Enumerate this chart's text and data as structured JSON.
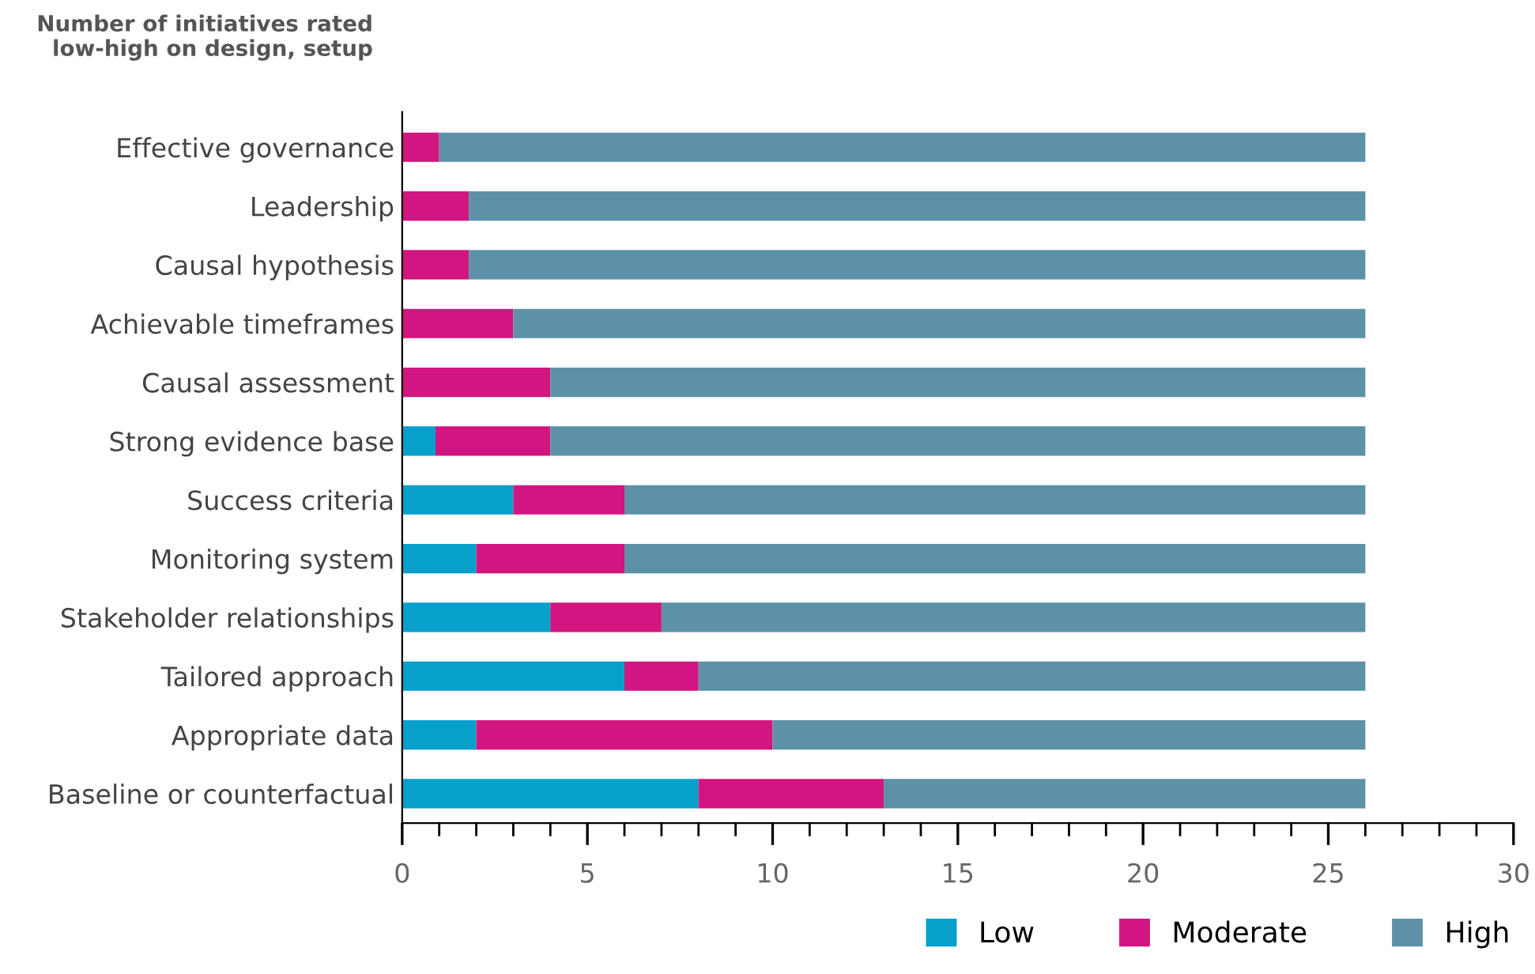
{
  "chart_data": {
    "type": "bar",
    "orientation": "horizontal",
    "stacked": true,
    "title": "Number of initiatives rated\nlow-high on design, setup",
    "categories": [
      "Effective governance",
      "Leadership",
      "Causal hypothesis",
      "Achievable timeframes",
      "Causal assessment",
      "Strong evidence base",
      "Success criteria",
      "Monitoring system",
      "Stakeholder relationships",
      "Tailored approach",
      "Appropriate data",
      "Baseline or counterfactual"
    ],
    "series": [
      {
        "name": "Low",
        "color": "#079fcb",
        "values": [
          0,
          0,
          0,
          0,
          0,
          0.9,
          3,
          2,
          4,
          6,
          2,
          8
        ]
      },
      {
        "name": "Moderate",
        "color": "#d11581",
        "values": [
          1,
          1.8,
          1.8,
          3,
          4,
          3.1,
          3,
          4,
          3,
          2,
          8,
          5
        ]
      },
      {
        "name": "High",
        "color": "#5d91a8",
        "values": [
          25,
          24.2,
          24.2,
          23,
          22,
          22,
          20,
          20,
          19,
          18,
          16,
          13
        ]
      }
    ],
    "xlim": [
      0,
      30
    ],
    "xticks": [
      0,
      {
        "value": 1,
        "label": null
      },
      {
        "value": 2,
        "label": null
      },
      {
        "value": 3,
        "label": null
      },
      {
        "value": 4,
        "label": null
      },
      5,
      {
        "value": 6,
        "label": null
      },
      {
        "value": 7,
        "label": null
      },
      {
        "value": 8,
        "label": null
      },
      {
        "value": 9,
        "label": null
      },
      10,
      {
        "value": 11,
        "label": null
      },
      {
        "value": 12,
        "label": null
      },
      {
        "value": 13,
        "label": null
      },
      {
        "value": 14,
        "label": null
      },
      15,
      {
        "value": 16,
        "label": null
      },
      {
        "value": 17,
        "label": null
      },
      {
        "value": 18,
        "label": null
      },
      {
        "value": 19,
        "label": null
      },
      20,
      {
        "value": 21,
        "label": null
      },
      {
        "value": 22,
        "label": null
      },
      {
        "value": 23,
        "label": null
      },
      {
        "value": 24,
        "label": null
      },
      25,
      {
        "value": 26,
        "label": null
      },
      {
        "value": 27,
        "label": null
      },
      {
        "value": 28,
        "label": null
      },
      {
        "value": 29,
        "label": null
      },
      30
    ],
    "grid": false,
    "legend": "bottom right"
  }
}
